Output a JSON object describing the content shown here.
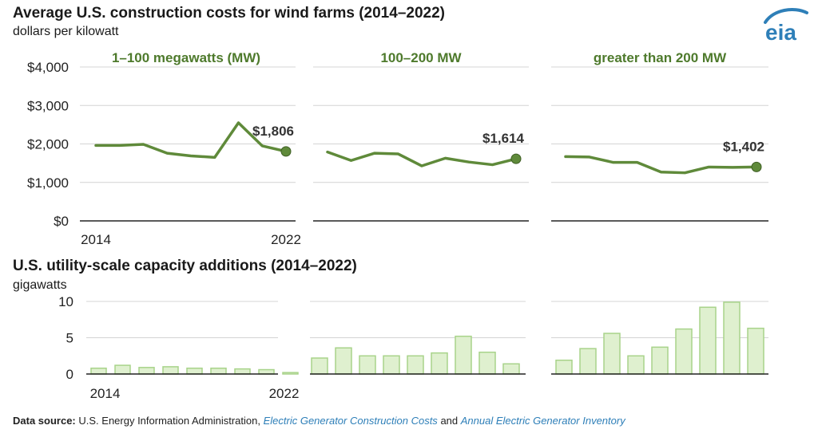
{
  "header": {
    "title": "Average U.S. construction costs for wind farms (2014–2022)",
    "subtitle": "dollars per kilowatt",
    "logo_text": "eia"
  },
  "lower_header": {
    "title": "U.S. utility-scale capacity additions (2014–2022)",
    "subtitle": "gigawatts"
  },
  "source": {
    "label": "Data source:",
    "text1": "U.S. Energy Information Administration,",
    "link1": "Electric Generator Construction Costs",
    "text2": "and",
    "link2": "Annual Electric Generator Inventory"
  },
  "colors": {
    "line": "#5f8a3a",
    "label_green": "#4e7a2c",
    "bar_fill": "#dff0cf",
    "bar_stroke": "#a8d38a",
    "grid": "#d4d4d4",
    "axis": "#222222",
    "logo_blue": "#2e7fb8"
  },
  "chart_data": [
    {
      "type": "line",
      "title": "1–100 megawatts (MW)",
      "x": [
        2014,
        2015,
        2016,
        2017,
        2018,
        2019,
        2020,
        2021,
        2022
      ],
      "values": [
        1960,
        1960,
        1990,
        1760,
        1690,
        1650,
        2550,
        1950,
        1806
      ],
      "end_label": "$1,806",
      "ylim": [
        0,
        4000
      ],
      "yticks": [
        "$4,000",
        "$3,000",
        "$2,000",
        "$1,000",
        "$0"
      ],
      "xtick_labels": [
        "2014",
        "2022"
      ]
    },
    {
      "type": "line",
      "title": "100–200 MW",
      "x": [
        2014,
        2015,
        2016,
        2017,
        2018,
        2019,
        2020,
        2021,
        2022
      ],
      "values": [
        1790,
        1570,
        1760,
        1740,
        1430,
        1630,
        1530,
        1460,
        1614
      ],
      "end_label": "$1,614",
      "ylim": [
        0,
        4000
      ]
    },
    {
      "type": "line",
      "title": "greater than 200 MW",
      "x": [
        2014,
        2015,
        2016,
        2017,
        2018,
        2019,
        2020,
        2021,
        2022
      ],
      "values": [
        1670,
        1660,
        1520,
        1520,
        1270,
        1250,
        1400,
        1390,
        1402
      ],
      "end_label": "$1,402",
      "ylim": [
        0,
        4000
      ]
    },
    {
      "type": "bar",
      "x": [
        2014,
        2015,
        2016,
        2017,
        2018,
        2019,
        2020,
        2021,
        2022
      ],
      "values": [
        0.8,
        1.2,
        0.9,
        1.0,
        0.8,
        0.8,
        0.7,
        0.6,
        0.2
      ],
      "ylim": [
        0,
        10
      ],
      "yticks": [
        "10",
        "5",
        "0"
      ],
      "xtick_labels": [
        "2014",
        "2022"
      ]
    },
    {
      "type": "bar",
      "x": [
        2014,
        2015,
        2016,
        2017,
        2018,
        2019,
        2020,
        2021,
        2022
      ],
      "values": [
        2.2,
        3.6,
        2.5,
        2.5,
        2.5,
        2.9,
        5.2,
        3.0,
        1.4
      ],
      "ylim": [
        0,
        10
      ]
    },
    {
      "type": "bar",
      "x": [
        2014,
        2015,
        2016,
        2017,
        2018,
        2019,
        2020,
        2021,
        2022
      ],
      "values": [
        1.9,
        3.5,
        5.6,
        2.5,
        3.7,
        6.2,
        9.2,
        9.9,
        6.3
      ],
      "ylim": [
        0,
        10
      ]
    }
  ]
}
